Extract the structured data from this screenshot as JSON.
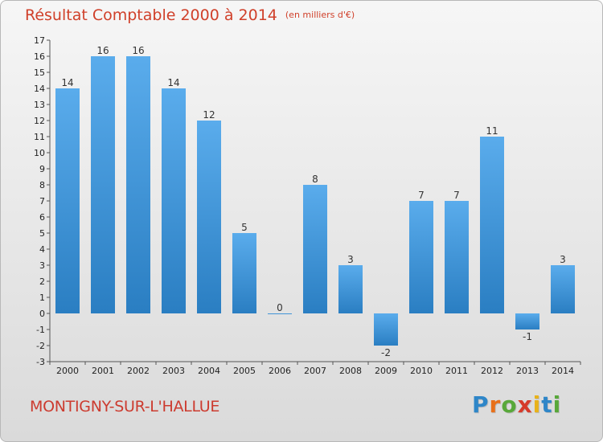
{
  "title": "Résultat Comptable 2000 à 2014",
  "unit": "(en milliers d'€)",
  "city": "MONTIGNY-SUR-L'HALLUE",
  "brand": {
    "letters": [
      "P",
      "r",
      "o",
      "x",
      "i",
      "t",
      "i"
    ],
    "colors": [
      "#2e86c8",
      "#e8701a",
      "#58a83a",
      "#d63a2a",
      "#e8b21a",
      "#2e86c8",
      "#58a83a"
    ]
  },
  "chart_data": {
    "type": "bar",
    "categories": [
      "2000",
      "2001",
      "2002",
      "2003",
      "2004",
      "2005",
      "2006",
      "2007",
      "2008",
      "2009",
      "2010",
      "2011",
      "2012",
      "2013",
      "2014"
    ],
    "values": [
      14,
      16,
      16,
      14,
      12,
      5,
      0,
      8,
      3,
      -2,
      7,
      7,
      11,
      -1,
      3
    ],
    "yticks": [
      "-3",
      "-2",
      "-1",
      "0",
      "1",
      "2",
      "3",
      "4",
      "5",
      "6",
      "7",
      "8",
      "9",
      "10",
      "11",
      "12",
      "13",
      "14",
      "15",
      "16",
      "17"
    ],
    "ylim": [
      -3,
      17
    ],
    "bar_color": "#3a93dc",
    "grid": false
  }
}
